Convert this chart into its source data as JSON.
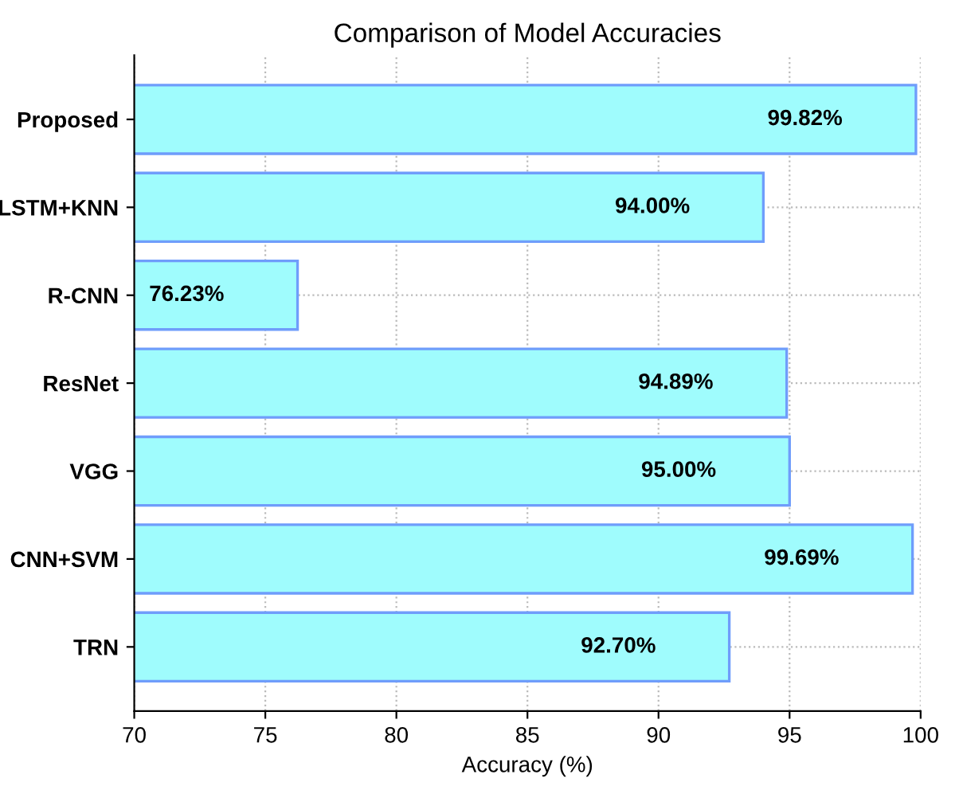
{
  "chart_data": {
    "type": "bar",
    "orientation": "horizontal",
    "title": "Comparison of Model Accuracies",
    "xlabel": "Accuracy (%)",
    "categories": [
      "Proposed",
      "LSTM+KNN",
      "R-CNN",
      "ResNet",
      "VGG",
      "CNN+SVM",
      "TRN"
    ],
    "values": [
      99.82,
      94.0,
      76.23,
      94.89,
      95.0,
      99.69,
      92.7
    ],
    "value_labels": [
      "99.82%",
      "94.00%",
      "76.23%",
      "94.89%",
      "95.00%",
      "99.69%",
      "92.70%"
    ],
    "color": "#9ffcfd",
    "xlim": [
      70,
      100
    ],
    "xticks": [
      70,
      75,
      80,
      85,
      90,
      95,
      100
    ],
    "grid": true
  }
}
